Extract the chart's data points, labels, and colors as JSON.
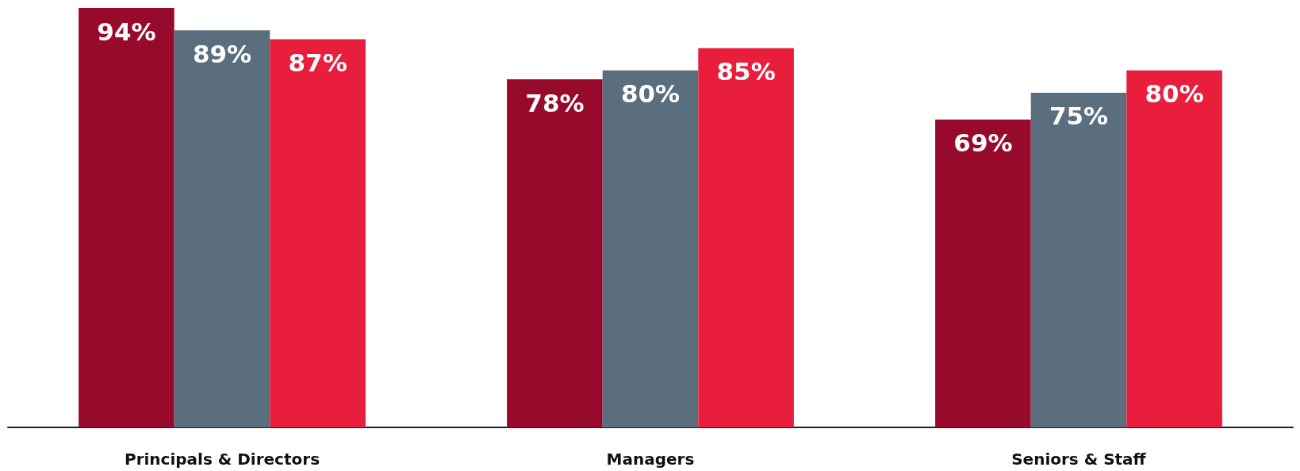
{
  "chart_data": {
    "type": "bar",
    "categories": [
      "Principals & Directors",
      "Managers",
      "Seniors & Staff"
    ],
    "series": [
      {
        "color": "#970a2c",
        "values": [
          94,
          78,
          69
        ],
        "value_labels": [
          "94%",
          "78%",
          "69%"
        ]
      },
      {
        "color": "#5b6e7e",
        "values": [
          89,
          80,
          75
        ],
        "value_labels": [
          "89%",
          "80%",
          "75%"
        ]
      },
      {
        "color": "#e81e3c",
        "values": [
          87,
          85,
          80
        ],
        "value_labels": [
          "87%",
          "85%",
          "80%"
        ]
      }
    ]
  }
}
